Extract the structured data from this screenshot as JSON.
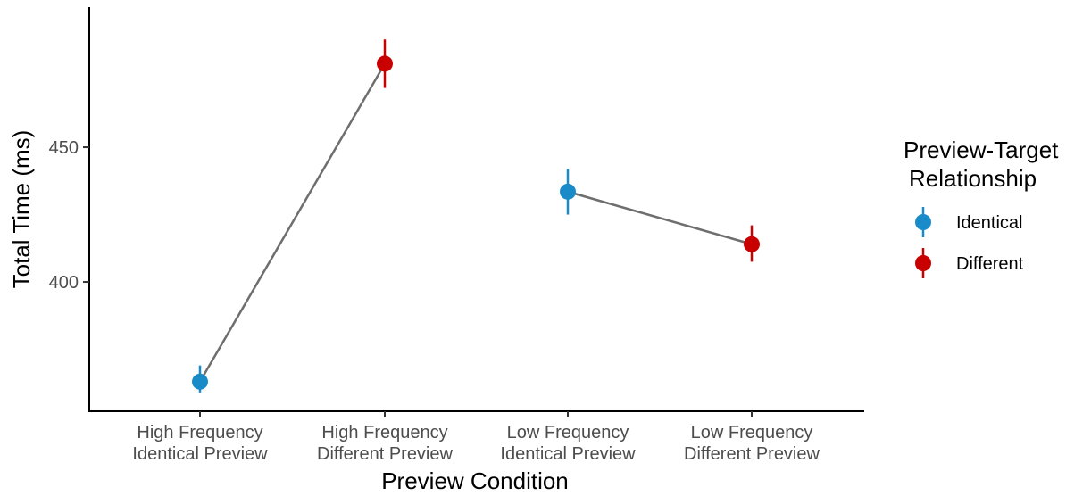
{
  "chart_data": {
    "type": "scatter",
    "title": "",
    "xlabel": "Preview Condition",
    "ylabel": "Total Time (ms)",
    "categories": [
      [
        "High Frequency",
        "Identical Preview"
      ],
      [
        "High Frequency",
        "Different Preview"
      ],
      [
        "Low Frequency",
        "Identical Preview"
      ],
      [
        "Low Frequency",
        "Different Preview"
      ]
    ],
    "ylim": [
      352,
      502
    ],
    "yticks": [
      400,
      450
    ],
    "grid": false,
    "legend": {
      "title_lines": [
        "Preview-Target",
        "Relationship"
      ],
      "placement": "right"
    },
    "series": [
      {
        "name": "Identical",
        "color": "#1A8BC9",
        "points": [
          {
            "x_index": 0,
            "y": 363,
            "ymin": 359,
            "ymax": 369
          },
          {
            "x_index": 2,
            "y": 433.5,
            "ymin": 425,
            "ymax": 442
          }
        ]
      },
      {
        "name": "Different",
        "color": "#C80000",
        "points": [
          {
            "x_index": 1,
            "y": 481,
            "ymin": 472,
            "ymax": 490
          },
          {
            "x_index": 3,
            "y": 414,
            "ymin": 407.5,
            "ymax": 421
          }
        ]
      }
    ],
    "connecting_lines": {
      "color": "#6E6E6E",
      "pairs": [
        [
          0,
          1
        ],
        [
          2,
          3
        ]
      ]
    }
  }
}
